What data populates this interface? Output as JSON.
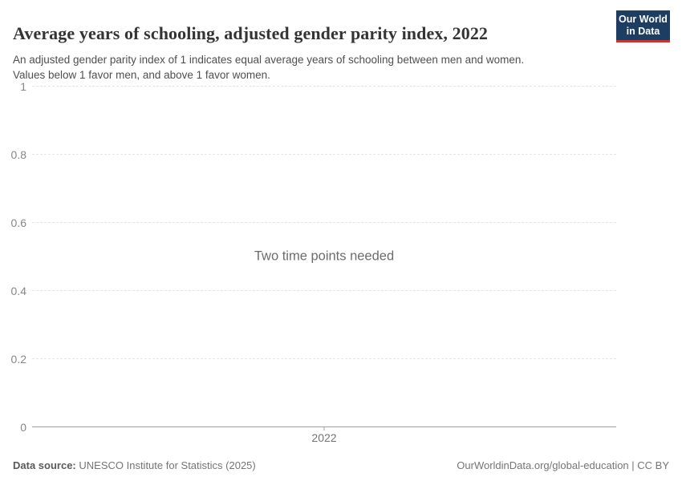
{
  "header": {
    "logo": {
      "line1": "Our World",
      "line2": "in Data",
      "bg_color": "#1d3d63",
      "stripe_color": "#dc2e27"
    }
  },
  "chart_data": {
    "type": "line",
    "title": "Average years of schooling, adjusted gender parity index, 2022",
    "subtitle_line1": "An adjusted gender parity index of 1 indicates equal average years of schooling between men and women.",
    "subtitle_line2": "Values below 1 favor men, and above 1 favor women.",
    "empty_state_message": "Two time points needed",
    "series": [],
    "x": {
      "ticks": [
        {
          "label": "2022"
        }
      ]
    },
    "y": {
      "range": [
        0,
        1
      ],
      "ticks": [
        {
          "label": "0",
          "value": 0
        },
        {
          "label": "0.2",
          "value": 0.2
        },
        {
          "label": "0.4",
          "value": 0.4
        },
        {
          "label": "0.6",
          "value": 0.6
        },
        {
          "label": "0.8",
          "value": 0.8
        },
        {
          "label": "1",
          "value": 1
        }
      ]
    },
    "grid": "horizontal-dashed",
    "legend_position": "none"
  },
  "footer": {
    "data_source_label": "Data source:",
    "data_source_value": "UNESCO Institute for Statistics (2025)",
    "credit": "OurWorldinData.org/global-education | CC BY"
  }
}
